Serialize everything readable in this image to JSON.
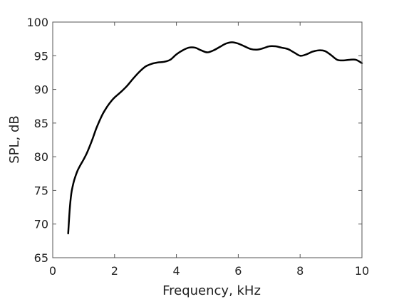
{
  "chart_data": {
    "type": "line",
    "title": "",
    "xlabel": "Frequency, kHz",
    "ylabel": "SPL, dB",
    "xlim": [
      0,
      10
    ],
    "ylim": [
      65,
      100
    ],
    "xticks": [
      0,
      2,
      4,
      6,
      8,
      10
    ],
    "yticks": [
      65,
      70,
      75,
      80,
      85,
      90,
      95,
      100
    ],
    "grid": false,
    "legend": "none",
    "series": [
      {
        "color": "#000000",
        "x": [
          0.5,
          0.55,
          0.6,
          0.65,
          0.7,
          0.8,
          0.9,
          1.0,
          1.1,
          1.2,
          1.3,
          1.4,
          1.5,
          1.6,
          1.7,
          1.8,
          1.9,
          2.0,
          2.2,
          2.4,
          2.6,
          2.8,
          3.0,
          3.2,
          3.4,
          3.6,
          3.8,
          4.0,
          4.2,
          4.4,
          4.6,
          4.8,
          5.0,
          5.2,
          5.4,
          5.6,
          5.8,
          6.0,
          6.2,
          6.4,
          6.6,
          6.8,
          7.0,
          7.2,
          7.4,
          7.6,
          7.8,
          8.0,
          8.2,
          8.4,
          8.6,
          8.8,
          9.0,
          9.2,
          9.4,
          9.6,
          9.8,
          10.0
        ],
        "y": [
          68.6,
          72.2,
          74.5,
          75.7,
          76.6,
          77.9,
          78.8,
          79.6,
          80.5,
          81.6,
          82.8,
          84.1,
          85.2,
          86.2,
          87.0,
          87.7,
          88.3,
          88.8,
          89.6,
          90.5,
          91.6,
          92.6,
          93.4,
          93.8,
          94.0,
          94.1,
          94.4,
          95.2,
          95.8,
          96.2,
          96.2,
          95.8,
          95.5,
          95.8,
          96.3,
          96.8,
          97.0,
          96.8,
          96.4,
          96.0,
          95.9,
          96.1,
          96.4,
          96.4,
          96.2,
          96.0,
          95.5,
          95.0,
          95.2,
          95.6,
          95.8,
          95.7,
          95.1,
          94.4,
          94.3,
          94.4,
          94.4,
          93.9
        ]
      }
    ]
  }
}
